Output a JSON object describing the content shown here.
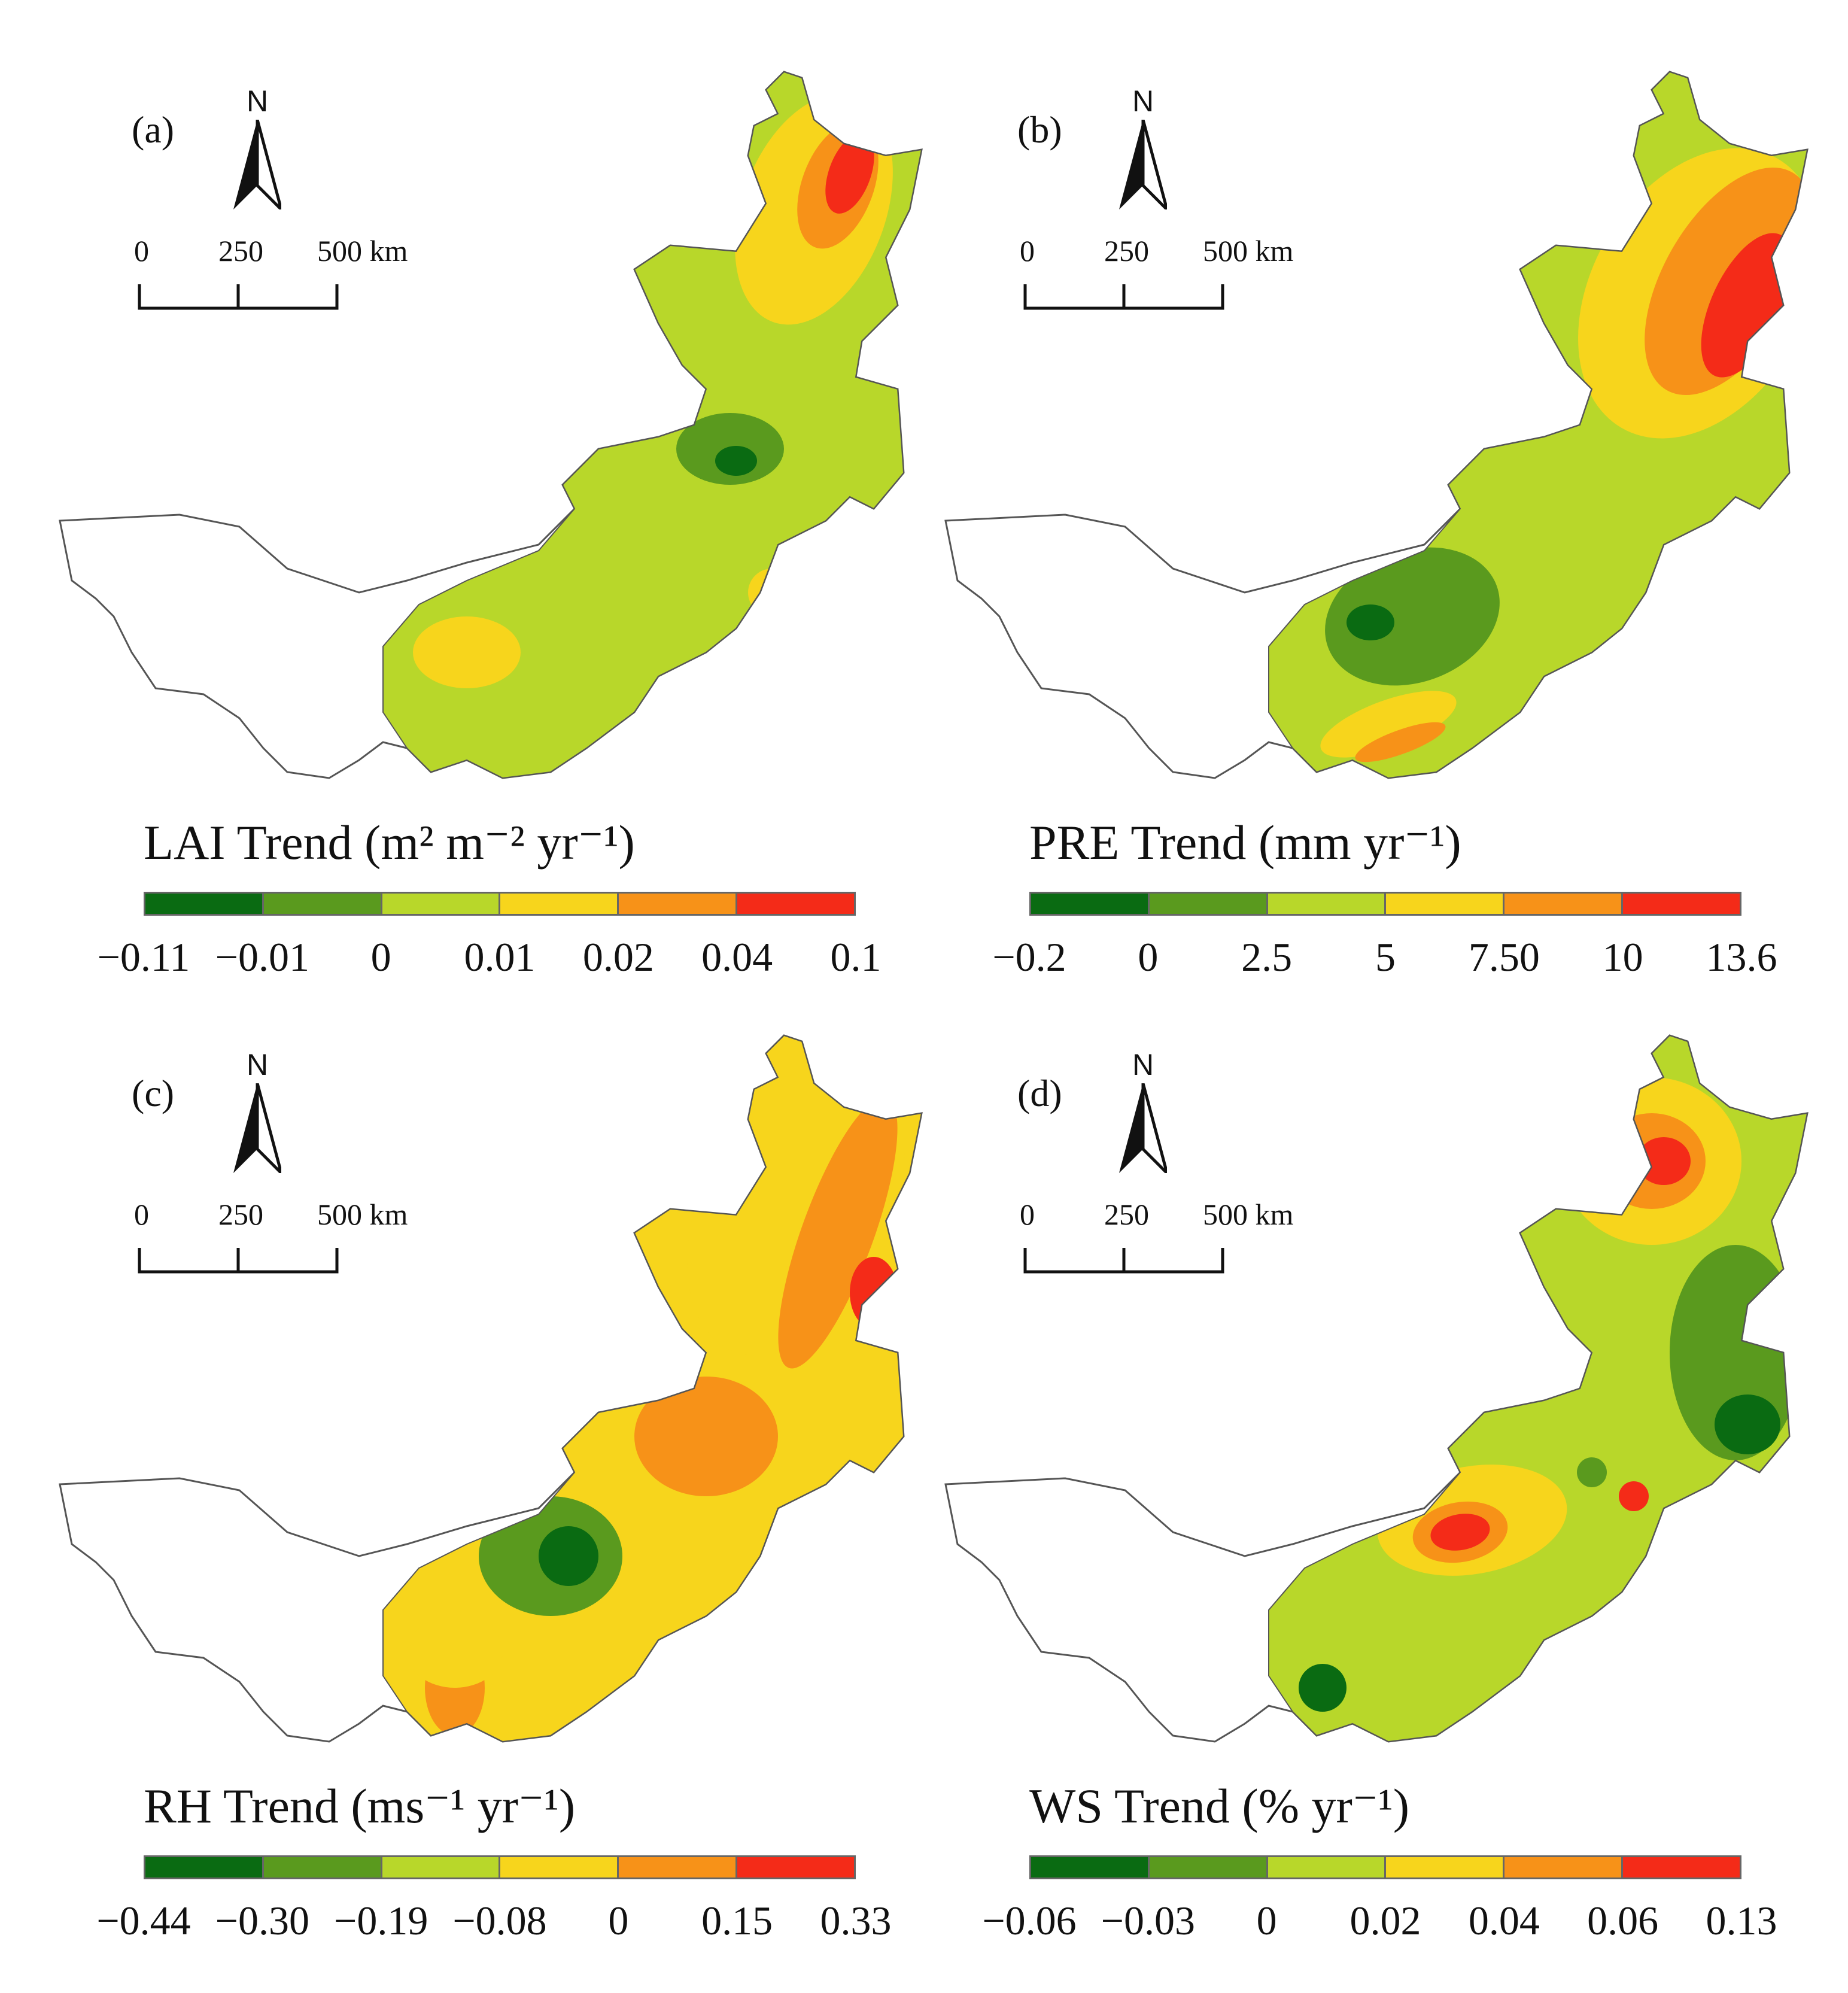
{
  "panels": [
    {
      "id": "a",
      "label": "(a)",
      "north_label": "N",
      "scale_labels": [
        "0",
        "250",
        "500 km"
      ],
      "legend_title_main": "LAI Trend (m",
      "legend_title_parts": [
        "2",
        " m",
        "−2",
        " yr",
        "−1",
        ")"
      ],
      "legend_title": "LAI Trend (m² m⁻² yr⁻¹)",
      "colors": [
        "#0a6b12",
        "#5a9a1e",
        "#b8d72a",
        "#f7d51c",
        "#f79218",
        "#f42b18"
      ],
      "ticks": [
        "−0.11",
        "−0.01",
        "0",
        "0.01",
        "0.02",
        "0.04",
        "0.1"
      ]
    },
    {
      "id": "b",
      "label": "(b)",
      "north_label": "N",
      "scale_labels": [
        "0",
        "250",
        "500 km"
      ],
      "legend_title": "PRE Trend (mm yr⁻¹)",
      "colors": [
        "#0a6b12",
        "#5a9a1e",
        "#b8d72a",
        "#f7d51c",
        "#f79218",
        "#f42b18"
      ],
      "ticks": [
        "−0.2",
        "0",
        "2.5",
        "5",
        "7.50",
        "10",
        "13.6"
      ]
    },
    {
      "id": "c",
      "label": "(c)",
      "north_label": "N",
      "scale_labels": [
        "0",
        "250",
        "500 km"
      ],
      "legend_title": "RH Trend (ms⁻¹ yr⁻¹)",
      "colors": [
        "#0a6b12",
        "#5a9a1e",
        "#b8d72a",
        "#f7d51c",
        "#f79218",
        "#f42b18"
      ],
      "ticks": [
        "−0.44",
        "−0.30",
        "−0.19",
        "−0.08",
        "0",
        "0.15",
        "0.33"
      ]
    },
    {
      "id": "d",
      "label": "(d)",
      "north_label": "N",
      "scale_labels": [
        "0",
        "250",
        "500 km"
      ],
      "legend_title": "WS Trend (% yr⁻¹)",
      "colors": [
        "#0a6b12",
        "#5a9a1e",
        "#b8d72a",
        "#f7d51c",
        "#f79218",
        "#f42b18"
      ],
      "ticks": [
        "−0.06",
        "−0.03",
        "0",
        "0.02",
        "0.04",
        "0.06",
        "0.13"
      ]
    }
  ]
}
